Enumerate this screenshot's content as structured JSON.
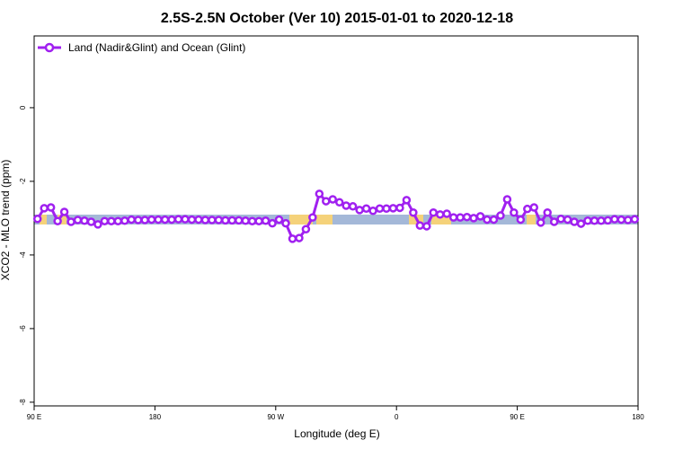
{
  "chart_data": {
    "type": "line",
    "title": "2.5S-2.5N October (Ver 10)   2015-01-01 to 2020-12-18",
    "x_label": "Longitude (deg E)",
    "y_label": "XCO2 - MLO trend (ppm)",
    "x": [
      92.5,
      97.5,
      102.5,
      107.5,
      112.5,
      117.5,
      122.5,
      127.5,
      132.5,
      137.5,
      142.5,
      147.5,
      152.5,
      157.5,
      162.5,
      167.5,
      172.5,
      177.5,
      182.5,
      187.5,
      192.5,
      197.5,
      202.5,
      207.5,
      212.5,
      217.5,
      222.5,
      227.5,
      232.5,
      237.5,
      242.5,
      247.5,
      252.5,
      257.5,
      262.5,
      267.5,
      272.5,
      277.5,
      282.5,
      287.5,
      292.5,
      297.5,
      302.5,
      307.5,
      312.5,
      317.5,
      322.5,
      327.5,
      332.5,
      337.5,
      342.5,
      347.5,
      352.5,
      357.5,
      362.5,
      367.5,
      372.5,
      377.5,
      382.5,
      387.5,
      392.5,
      397.5,
      402.5,
      407.5,
      412.5,
      417.5,
      422.5,
      427.5,
      432.5,
      437.5,
      442.5,
      447.5,
      452.5,
      457.5,
      462.5,
      467.5,
      472.5,
      477.5,
      482.5,
      487.5,
      492.5,
      497.5,
      502.5,
      507.5,
      512.5,
      517.5,
      522.5,
      527.5,
      532.5,
      537.5
    ],
    "series": [
      {
        "name": "Land (Nadir&Glint) and Ocean (Glint)",
        "color": "#a020f0",
        "values": [
          -3.02,
          -2.73,
          -2.71,
          -3.08,
          -2.83,
          -3.1,
          -3.05,
          -3.07,
          -3.1,
          -3.17,
          -3.08,
          -3.08,
          -3.08,
          -3.07,
          -3.04,
          -3.05,
          -3.05,
          -3.04,
          -3.04,
          -3.04,
          -3.04,
          -3.03,
          -3.03,
          -3.04,
          -3.04,
          -3.05,
          -3.05,
          -3.05,
          -3.06,
          -3.06,
          -3.06,
          -3.07,
          -3.08,
          -3.08,
          -3.07,
          -3.14,
          -3.04,
          -3.14,
          -3.56,
          -3.54,
          -3.3,
          -2.98,
          -2.34,
          -2.54,
          -2.49,
          -2.57,
          -2.66,
          -2.68,
          -2.78,
          -2.74,
          -2.8,
          -2.74,
          -2.74,
          -2.73,
          -2.72,
          -2.51,
          -2.85,
          -3.2,
          -3.22,
          -2.85,
          -2.9,
          -2.88,
          -2.98,
          -2.98,
          -2.97,
          -3.0,
          -2.95,
          -3.04,
          -3.04,
          -2.93,
          -2.49,
          -2.85,
          -3.04,
          -2.75,
          -2.71,
          -3.12,
          -2.85,
          -3.1,
          -3.02,
          -3.04,
          -3.1,
          -3.15,
          -3.07,
          -3.07,
          -3.07,
          -3.06,
          -3.03,
          -3.04,
          -3.05,
          -3.03
        ]
      }
    ],
    "xlim": [
      90,
      540
    ],
    "ylim": [
      -8.1,
      1.95
    ],
    "xticks": [
      {
        "value": 90,
        "label": "90 E"
      },
      180,
      {
        "value": 270,
        "label": "90 W"
      },
      {
        "value": 360,
        "label": "0"
      },
      {
        "value": 450,
        "label": "90 E"
      },
      {
        "value": 540,
        "label": "180"
      }
    ],
    "yticks": [
      0,
      -2,
      -4,
      -6,
      -8
    ],
    "grid": false,
    "legend": "top-left"
  }
}
